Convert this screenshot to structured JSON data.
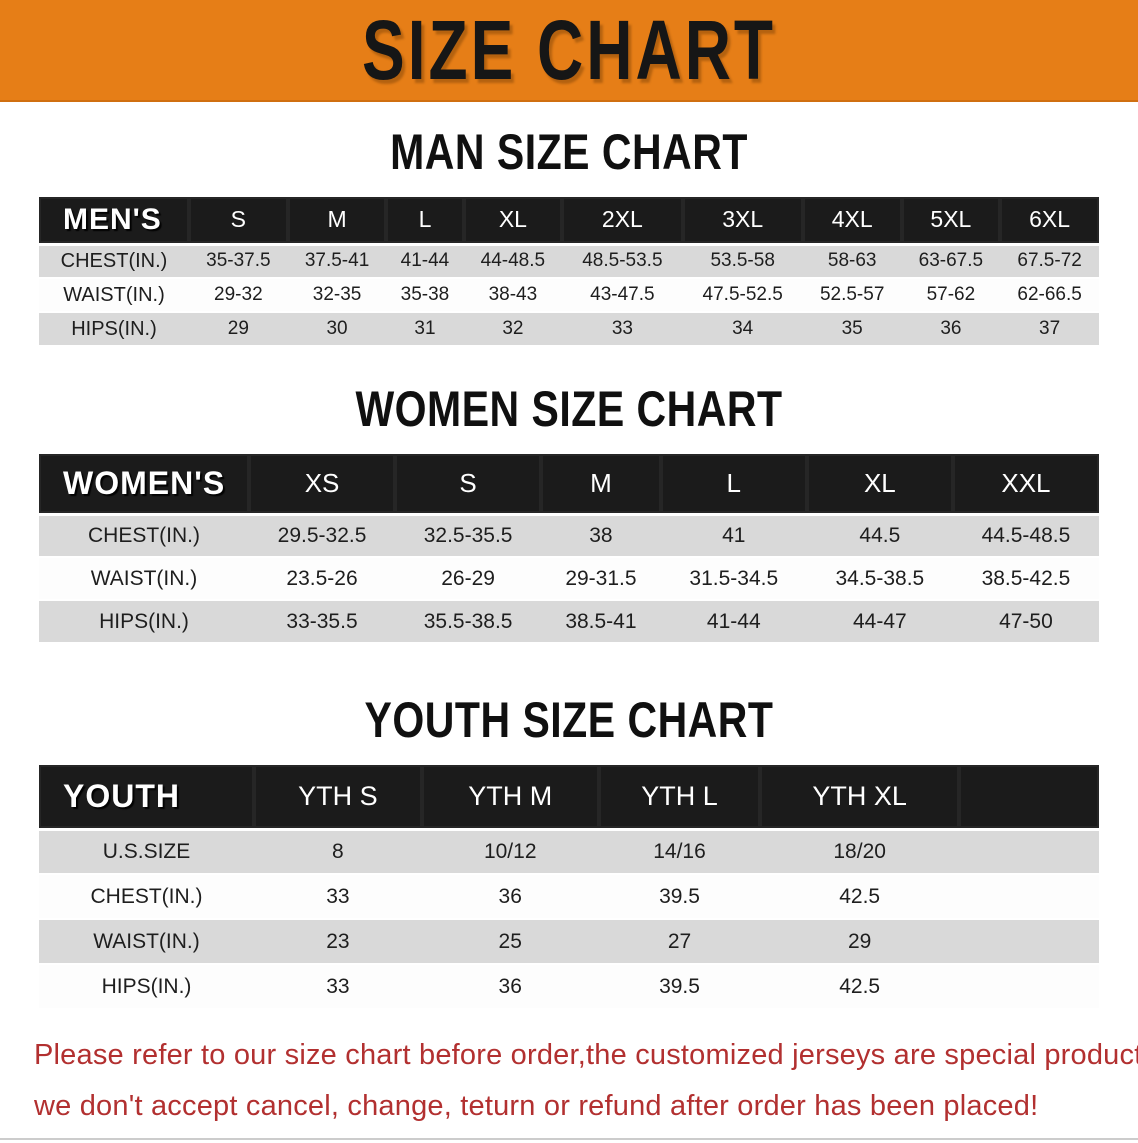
{
  "colors": {
    "banner_bg": "#E67E17",
    "banner_text": "#161616",
    "table_header_bg": "#1b1b1b",
    "table_header_text": "#ffffff",
    "stripe_bg": "#d9d9d9",
    "row_bg": "#fdfdfd",
    "footer_text": "#b23030"
  },
  "banner": {
    "title": "SIZE CHART"
  },
  "men": {
    "heading": "MAN SIZE CHART",
    "header": [
      "MEN'S",
      "S",
      "M",
      "L",
      "XL",
      "2XL",
      "3XL",
      "4XL",
      "5XL",
      "6XL"
    ],
    "rows": [
      {
        "label": "CHEST(IN.)",
        "values": [
          "35-37.5",
          "37.5-41",
          "41-44",
          "44-48.5",
          "48.5-53.5",
          "53.5-58",
          "58-63",
          "63-67.5",
          "67.5-72"
        ]
      },
      {
        "label": "WAIST(IN.)",
        "values": [
          "29-32",
          "32-35",
          "35-38",
          "38-43",
          "43-47.5",
          "47.5-52.5",
          "52.5-57",
          "57-62",
          "62-66.5"
        ]
      },
      {
        "label": "HIPS(IN.)",
        "values": [
          "29",
          "30",
          "31",
          "32",
          "33",
          "34",
          "35",
          "36",
          "37"
        ]
      }
    ]
  },
  "women": {
    "heading": "WOMEN SIZE CHART",
    "header": [
      "WOMEN'S",
      "XS",
      "S",
      "M",
      "L",
      "XL",
      "XXL"
    ],
    "rows": [
      {
        "label": "CHEST(IN.)",
        "values": [
          "29.5-32.5",
          "32.5-35.5",
          "38",
          "41",
          "44.5",
          "44.5-48.5"
        ]
      },
      {
        "label": "WAIST(IN.)",
        "values": [
          "23.5-26",
          "26-29",
          "29-31.5",
          "31.5-34.5",
          "34.5-38.5",
          "38.5-42.5"
        ]
      },
      {
        "label": "HIPS(IN.)",
        "values": [
          "33-35.5",
          "35.5-38.5",
          "38.5-41",
          "41-44",
          "44-47",
          "47-50"
        ]
      }
    ]
  },
  "youth": {
    "heading": "YOUTH SIZE CHART",
    "header": [
      "YOUTH",
      "YTH S",
      "YTH M",
      "YTH L",
      "YTH XL"
    ],
    "rows": [
      {
        "label": "U.S.SIZE",
        "values": [
          "8",
          "10/12",
          "14/16",
          "18/20"
        ]
      },
      {
        "label": "CHEST(IN.)",
        "values": [
          "33",
          "36",
          "39.5",
          "42.5"
        ]
      },
      {
        "label": "WAIST(IN.)",
        "values": [
          "23",
          "25",
          "27",
          "29"
        ]
      },
      {
        "label": "HIPS(IN.)",
        "values": [
          "33",
          "36",
          "39.5",
          "42.5"
        ]
      }
    ]
  },
  "footer": {
    "line1": "Please refer to our size chart before order,the customized jerseys are special products,",
    "line2": "we don't accept cancel, change, teturn or refund after order has been placed!"
  }
}
